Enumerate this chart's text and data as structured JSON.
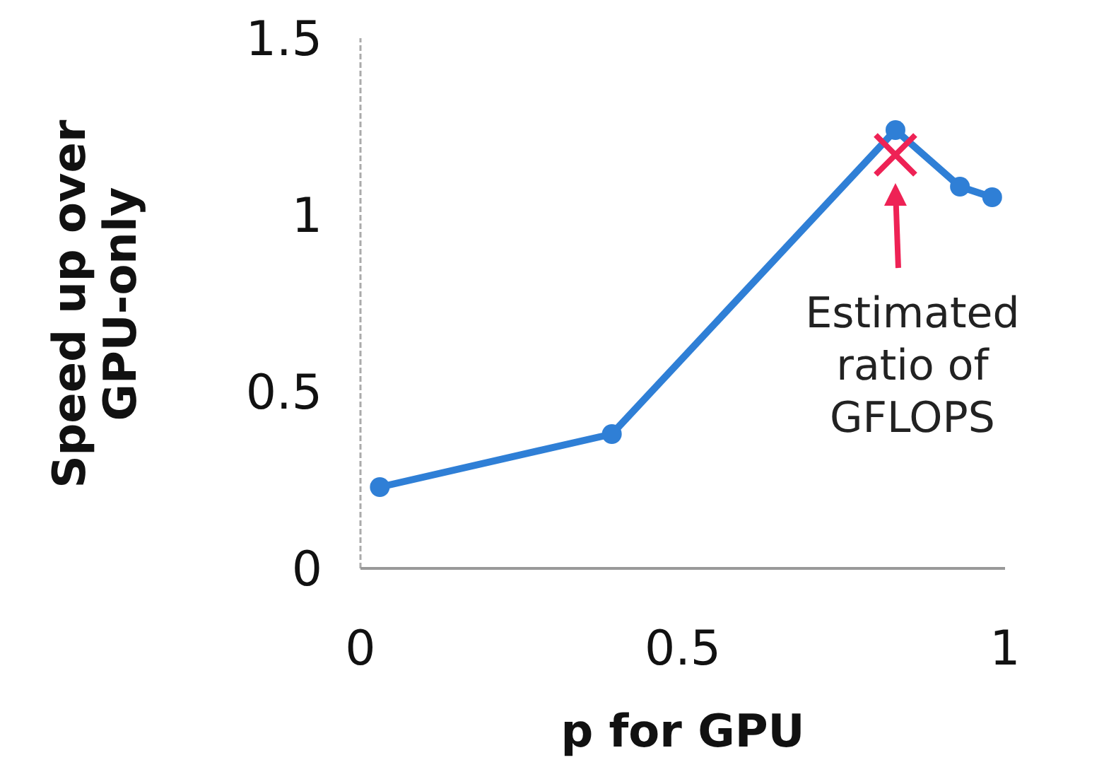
{
  "chart_data": {
    "type": "line",
    "xlabel": "p for GPU",
    "ylabel": "Speed up over\nGPU-only",
    "x": [
      0.03,
      0.39,
      0.83,
      0.93,
      0.98
    ],
    "series": [
      {
        "color": "#2f7fd6",
        "values": [
          0.23,
          0.38,
          1.24,
          1.08,
          1.05
        ]
      },
      {
        "type": "scatter",
        "marker": "cross",
        "color": "#ee2255",
        "x": [
          0.83
        ],
        "values": [
          1.17
        ]
      }
    ],
    "xlim": [
      0,
      1
    ],
    "ylim": [
      0,
      1.5
    ],
    "xticks": [
      0,
      0.5,
      1
    ],
    "yticks": [
      0,
      0.5,
      1,
      1.5
    ],
    "marker": "circle",
    "line_style": "solid",
    "grid": false,
    "annotations": [
      "Estimated\nratio of\nGFLOPS"
    ]
  }
}
